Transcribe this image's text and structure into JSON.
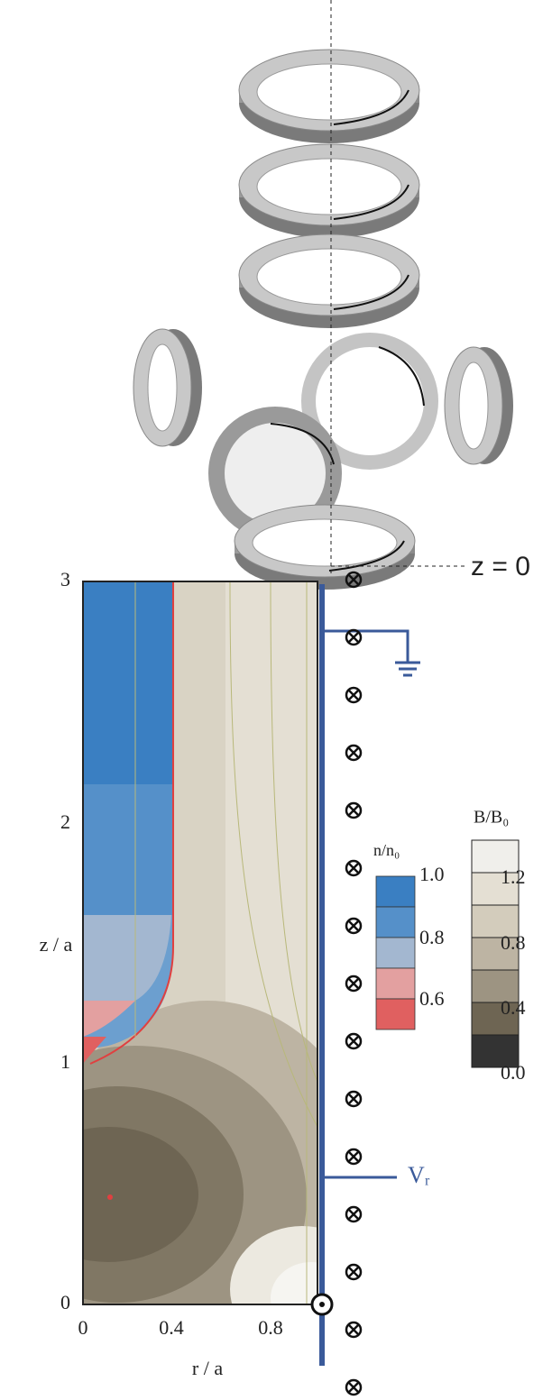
{
  "illustration": {
    "label": "z = 0"
  },
  "plot": {
    "x_label": "r / a",
    "y_label": "z / a",
    "x_ticks": [
      "0",
      "0.4",
      "0.8"
    ],
    "y_ticks": [
      "0",
      "1",
      "2",
      "3"
    ],
    "voltage_label": "Vᵣ"
  },
  "density_bar": {
    "title": "n/n₀",
    "labels": [
      "1.0",
      "0.8",
      "0.6"
    ]
  },
  "field_bar": {
    "title": "B/B₀",
    "labels": [
      "1.2",
      "0.8",
      "0.4",
      "0.0"
    ]
  }
}
